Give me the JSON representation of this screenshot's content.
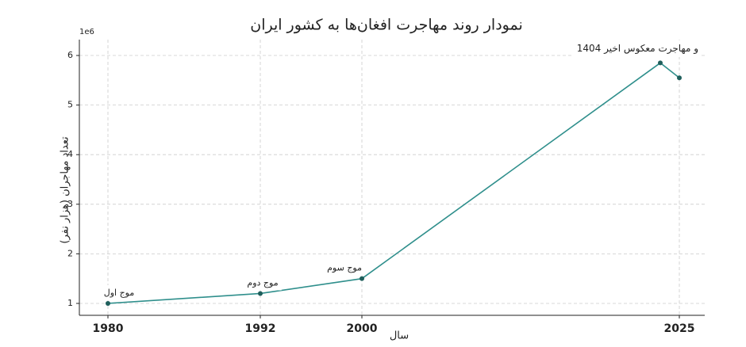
{
  "chart_data": {
    "type": "line",
    "title": "نمودار روند مهاجرت افغان‌ها به کشور ایران",
    "xlabel": "سال",
    "ylabel": "تعداد مهاجران (هزار نفر)",
    "y_offset_label": "1e6",
    "x": [
      1980,
      1992,
      2000,
      2023.5,
      2025
    ],
    "series": [
      {
        "name": "",
        "color": "#2f8f8c",
        "values": [
          1,
          1.2,
          1.5,
          5.85,
          5.55
        ]
      }
    ],
    "annotations": [
      "موج اول",
      "موج دوم",
      "موج سوم",
      "1404 و مهاجرت معکوس اخیر"
    ],
    "xlim": [
      1977.75,
      2027
    ],
    "xticks": [
      1980,
      1992,
      2000,
      2025
    ],
    "ylim": [
      0.76,
      6.32
    ],
    "yticks": [
      1,
      2,
      3,
      4,
      5,
      6
    ],
    "grid": true
  }
}
